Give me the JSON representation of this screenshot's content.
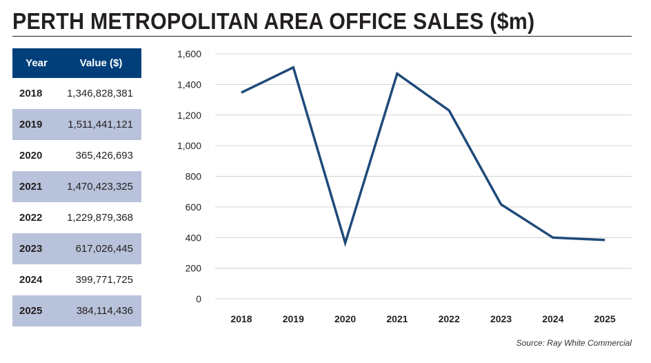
{
  "title": "PERTH METROPOLITAN AREA OFFICE SALES ($m)",
  "table": {
    "headers": [
      "Year",
      "Value ($)"
    ],
    "rows": [
      [
        "2018",
        "1,346,828,381"
      ],
      [
        "2019",
        "1,511,441,121"
      ],
      [
        "2020",
        "365,426,693"
      ],
      [
        "2021",
        "1,470,423,325"
      ],
      [
        "2022",
        "1,229,879,368"
      ],
      [
        "2023",
        "617,026,445"
      ],
      [
        "2024",
        "399,771,725"
      ],
      [
        "2025",
        "384,114,436"
      ]
    ]
  },
  "source": "Source: Ray White Commercial",
  "colors": {
    "line": "#1f4a7a",
    "header": "#003f7a",
    "alt_row": "#b8c2da"
  },
  "chart_data": {
    "type": "line",
    "title": "PERTH METROPOLITAN AREA OFFICE SALES ($m)",
    "categories": [
      "2018",
      "2019",
      "2020",
      "2021",
      "2022",
      "2023",
      "2024",
      "2025"
    ],
    "series": [
      {
        "name": "Value ($m)",
        "values": [
          1346.8,
          1511.4,
          365.4,
          1470.4,
          1229.9,
          617.0,
          399.8,
          384.1
        ]
      }
    ],
    "yticks": [
      "0",
      "200",
      "400",
      "600",
      "800",
      "1,000",
      "1,200",
      "1,400",
      "1,600"
    ],
    "ylim": [
      0,
      1600
    ],
    "grid": true,
    "xlabel": "",
    "ylabel": ""
  }
}
